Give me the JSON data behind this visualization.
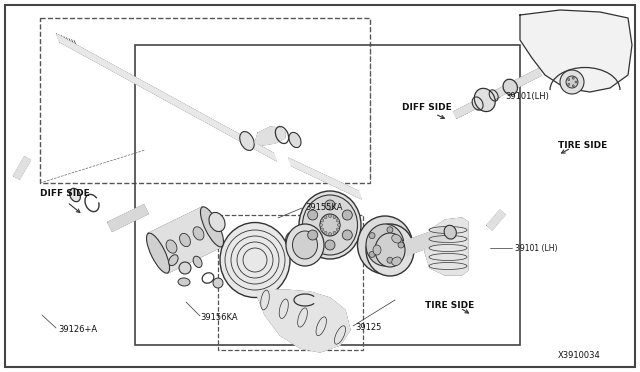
{
  "bg_color": "#ffffff",
  "lc": "#333333",
  "lc_thin": "#555555",
  "fig_width": 6.4,
  "fig_height": 3.72,
  "dpi": 100,
  "labels": {
    "diff_side_left": "DIFF SIDE",
    "diff_side_right": "DIFF SIDE",
    "tire_side_lower": "TIRE SIDE",
    "tire_side_upper": "TIRE SIDE",
    "part_39101_lh_top": "39101(LH)",
    "part_39101_lh_bot": "39101 (LH)",
    "part_39155ka": "39155KA",
    "part_39156ka": "39156KA",
    "part_39126a": "39126+A",
    "part_39125": "39125",
    "diagram_id": "X3910034"
  }
}
